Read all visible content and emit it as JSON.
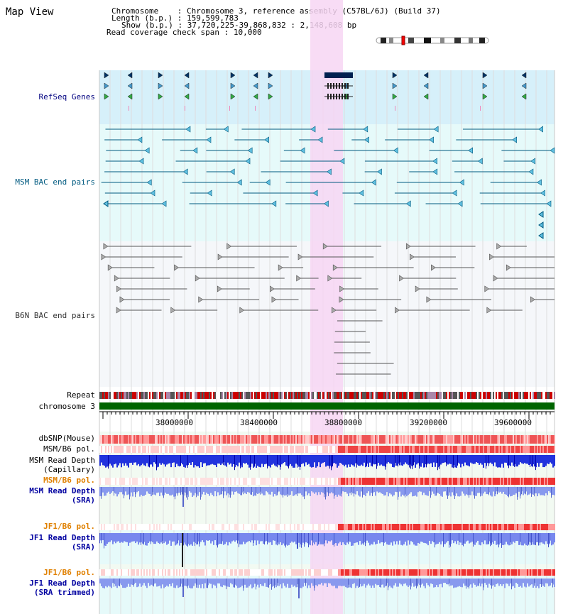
{
  "page": {
    "title": "Map View"
  },
  "info": {
    "chromosome_key": "Chromosome",
    "chromosome_val": "Chromosome 3, reference assembly (C57BL/6J) (Build 37)",
    "length_key": "Length (b.p.)",
    "length_val": "159,599,783",
    "show_key": "Show (b.p.)",
    "show_val": "37,720,225-39,868,832 : 2,148,608 bp",
    "span_key": "Read coverage check span",
    "span_val": "10,000"
  },
  "tracks": {
    "refseq": {
      "label": "RefSeq Genes",
      "color": "#000080"
    },
    "msm_bac": {
      "label": "MSM BAC end pairs",
      "color": "#005a80"
    },
    "b6n_bac": {
      "label": "B6N BAC end pairs",
      "color": "#333333"
    },
    "repeat": {
      "label": "Repeat"
    },
    "chromosome": {
      "label": "chromosome 3",
      "color": "#006400"
    },
    "dbsnp": {
      "label": "dbSNP(Mouse)"
    },
    "msm_b6_pol_1": {
      "label": "MSM/B6 pol."
    },
    "msm_depth_cap": {
      "label_line1": "MSM Read Depth",
      "label_line2": "(Capillary)"
    },
    "msm_b6_pol_2": {
      "label": "MSM/B6 pol.",
      "color": "#e08000"
    },
    "msm_depth_sra": {
      "label_line1": "MSM Read Depth",
      "label_line2": "(SRA)",
      "color": "#0000a0"
    },
    "jf1_b6_pol_1": {
      "label": "JF1/B6 pol.",
      "color": "#e08000"
    },
    "jf1_depth_sra": {
      "label_line1": "JF1 Read Depth",
      "label_line2": "(SRA)",
      "color": "#0000a0"
    },
    "jf1_b6_pol_2": {
      "label": "JF1/B6 pol.",
      "color": "#e08000"
    },
    "jf1_depth_trim": {
      "label_line1": "JF1 Read Depth",
      "label_line2": "(SRA trimmed)",
      "color": "#0000a0"
    }
  },
  "axis": {
    "ticks": [
      "38000000",
      "38400000",
      "38800000",
      "39200000",
      "39600000"
    ]
  },
  "colors": {
    "highlight": "#f7d6f3",
    "refseq_bg": "#d6f0fa",
    "bac_bg": "#e6fafa",
    "lane_bg": "#f2faf2"
  }
}
